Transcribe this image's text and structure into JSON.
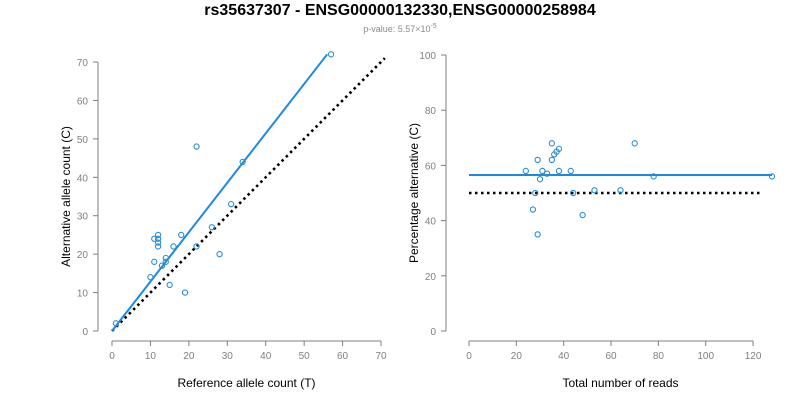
{
  "title": "rs35637307 - ENSG00000132330,ENSG00000258984",
  "subtitle": {
    "prefix": "p-value: 5.57×10",
    "exponent": "-5"
  },
  "colors": {
    "points": "#2a8bd8",
    "fit": "#1e88e5",
    "reference": "#000000",
    "axis": "#7f7f7f"
  },
  "chart_data": [
    {
      "type": "scatter",
      "xlabel": "Reference allele count (T)",
      "ylabel": "Alternative allele count (C)",
      "xlim": [
        0,
        70
      ],
      "ylim": [
        0,
        70
      ],
      "xticks": [
        0,
        10,
        20,
        30,
        40,
        50,
        60,
        70
      ],
      "yticks": [
        0,
        10,
        20,
        30,
        40,
        50,
        60,
        70
      ],
      "grid": false,
      "points": [
        {
          "x": 1,
          "y": 2
        },
        {
          "x": 10,
          "y": 14
        },
        {
          "x": 11,
          "y": 18
        },
        {
          "x": 11,
          "y": 24
        },
        {
          "x": 12,
          "y": 22
        },
        {
          "x": 12,
          "y": 23
        },
        {
          "x": 12,
          "y": 24
        },
        {
          "x": 12,
          "y": 25
        },
        {
          "x": 13,
          "y": 17
        },
        {
          "x": 14,
          "y": 18
        },
        {
          "x": 14,
          "y": 19
        },
        {
          "x": 15,
          "y": 12
        },
        {
          "x": 16,
          "y": 22
        },
        {
          "x": 18,
          "y": 25
        },
        {
          "x": 19,
          "y": 10
        },
        {
          "x": 22,
          "y": 22
        },
        {
          "x": 22,
          "y": 48
        },
        {
          "x": 26,
          "y": 27
        },
        {
          "x": 28,
          "y": 20
        },
        {
          "x": 31,
          "y": 33
        },
        {
          "x": 34,
          "y": 44
        },
        {
          "x": 57,
          "y": 72
        }
      ],
      "fit_line": {
        "x": [
          0,
          56
        ],
        "y": [
          0,
          72
        ]
      },
      "reference_line": {
        "x": [
          0,
          71
        ],
        "y": [
          0,
          71
        ]
      }
    },
    {
      "type": "scatter",
      "xlabel": "Total number of reads",
      "ylabel": "Percentage alternative (C)",
      "xlim": [
        0,
        128
      ],
      "ylim": [
        0,
        100
      ],
      "xticks": [
        0,
        20,
        40,
        60,
        80,
        100,
        120
      ],
      "yticks": [
        0,
        20,
        40,
        60,
        80,
        100
      ],
      "grid": false,
      "points": [
        {
          "x": 24,
          "y": 58
        },
        {
          "x": 27,
          "y": 44
        },
        {
          "x": 28,
          "y": 50
        },
        {
          "x": 29,
          "y": 35
        },
        {
          "x": 29,
          "y": 62
        },
        {
          "x": 30,
          "y": 55
        },
        {
          "x": 31,
          "y": 58
        },
        {
          "x": 33,
          "y": 57
        },
        {
          "x": 35,
          "y": 62
        },
        {
          "x": 35,
          "y": 68
        },
        {
          "x": 36,
          "y": 64
        },
        {
          "x": 37,
          "y": 65
        },
        {
          "x": 38,
          "y": 58
        },
        {
          "x": 38,
          "y": 66
        },
        {
          "x": 43,
          "y": 58
        },
        {
          "x": 44,
          "y": 50
        },
        {
          "x": 48,
          "y": 42
        },
        {
          "x": 53,
          "y": 51
        },
        {
          "x": 64,
          "y": 51
        },
        {
          "x": 70,
          "y": 68
        },
        {
          "x": 78,
          "y": 56
        },
        {
          "x": 128,
          "y": 56
        }
      ],
      "fit_line": {
        "x": [
          0,
          128
        ],
        "y": [
          56.5,
          56.5
        ]
      },
      "reference_line": {
        "x": [
          0,
          124
        ],
        "y": [
          50,
          50
        ]
      }
    }
  ]
}
